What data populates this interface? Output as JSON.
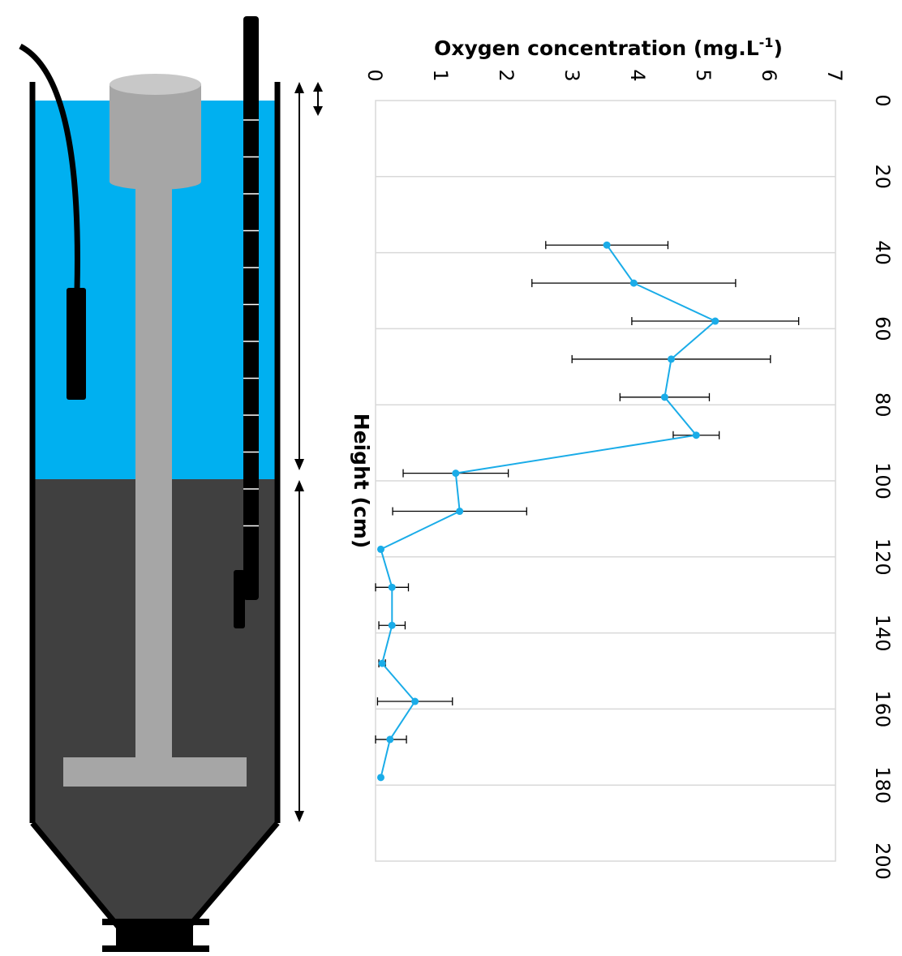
{
  "chart_data": {
    "type": "line",
    "xlabel": "Height (cm)",
    "ylabel_main": "Oxygen concentration (mg.L",
    "ylabel_sup": "-1",
    "ylabel_end": ")",
    "x_ticks": [
      0,
      20,
      40,
      60,
      80,
      100,
      120,
      140,
      160,
      180,
      200
    ],
    "y_ticks": [
      0,
      1,
      2,
      3,
      4,
      5,
      6,
      7
    ],
    "xlim": [
      0,
      200
    ],
    "ylim": [
      0,
      7
    ],
    "grid": true,
    "orientation": "rotated 90 degrees clockwise",
    "series": [
      {
        "color": "#1aace8",
        "x": [
          38,
          48,
          58,
          68,
          78,
          88,
          98,
          108,
          118,
          128,
          138,
          148,
          158,
          168,
          178
        ],
        "y": [
          3.52,
          3.93,
          5.17,
          4.5,
          4.4,
          4.88,
          1.22,
          1.28,
          0.08,
          0.25,
          0.25,
          0.1,
          0.6,
          0.22,
          0.08
        ],
        "err": [
          0.93,
          1.55,
          1.27,
          1.51,
          0.68,
          0.35,
          0.8,
          1.02,
          0.0,
          0.25,
          0.2,
          0.05,
          0.57,
          0.25,
          0.0
        ]
      }
    ]
  },
  "colors": {
    "water": "#00b0f0",
    "sludge": "#404040",
    "rod": "#a6a6a6",
    "series": "#1aace8"
  }
}
